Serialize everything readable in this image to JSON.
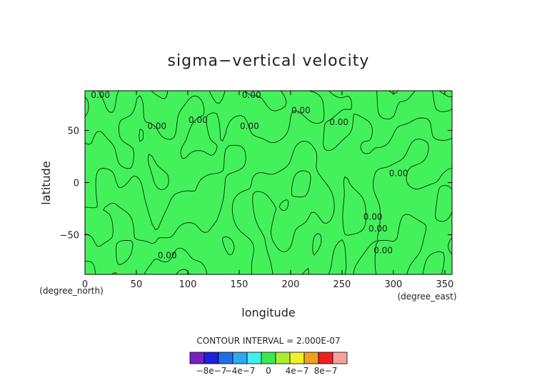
{
  "chart_data": {
    "type": "heatmap",
    "title": "sigma−vertical velocity",
    "xlabel": "longitude",
    "ylabel": "latitude",
    "x_unit": "(degree_east)",
    "y_unit": "(degree_north)",
    "xlim": [
      0,
      357
    ],
    "ylim": [
      -88,
      88
    ],
    "x_ticks": [
      0,
      50,
      100,
      150,
      200,
      250,
      300,
      350
    ],
    "y_ticks": [
      50,
      0,
      -50
    ],
    "y_tick_labels": [
      "50",
      "0",
      "−50"
    ],
    "x_tick_labels": [
      "0",
      "50",
      "100",
      "150",
      "200",
      "250",
      "300",
      "350"
    ],
    "contour_interval_text": "CONTOUR INTERVAL = 2.000E-07",
    "contour_labels": [
      {
        "text": "0.00",
        "x": 15,
        "y": 84
      },
      {
        "text": "0.00",
        "x": 162,
        "y": 84
      },
      {
        "text": "0.00",
        "x": 210,
        "y": 69
      },
      {
        "text": "0.00",
        "x": 70,
        "y": 54
      },
      {
        "text": "0.00",
        "x": 110,
        "y": 60
      },
      {
        "text": "0.00",
        "x": 160,
        "y": 54
      },
      {
        "text": "0.00",
        "x": 247,
        "y": 58
      },
      {
        "text": "0.00",
        "x": 305,
        "y": 9
      },
      {
        "text": "0.00",
        "x": 280,
        "y": -33
      },
      {
        "text": "0.00",
        "x": 285,
        "y": -44
      },
      {
        "text": "0.00",
        "x": 290,
        "y": -65
      },
      {
        "text": "0.00",
        "x": 80,
        "y": -70
      }
    ],
    "colorbar": {
      "levels": [
        "-1e-6",
        "-8e-7",
        "-6e-7",
        "-4e-7",
        "-2e-7",
        "0",
        "2e-7",
        "4e-7",
        "6e-7",
        "8e-7",
        "1e-6"
      ],
      "colors": [
        "#7a1fbf",
        "#1f1fe0",
        "#1f6fe8",
        "#2fa8f0",
        "#3ff0f0",
        "#3fe84f",
        "#a8f02f",
        "#f0f02f",
        "#f0a01f",
        "#f01f1f",
        "#f8a0a0"
      ],
      "labels": [
        "−8e−7",
        "−4e−7",
        "0",
        "4e−7",
        "8e−7"
      ]
    },
    "field_color": "#43f25a",
    "contour_value": 0.0,
    "grid": false,
    "legend": "bottom-center colorbar"
  }
}
